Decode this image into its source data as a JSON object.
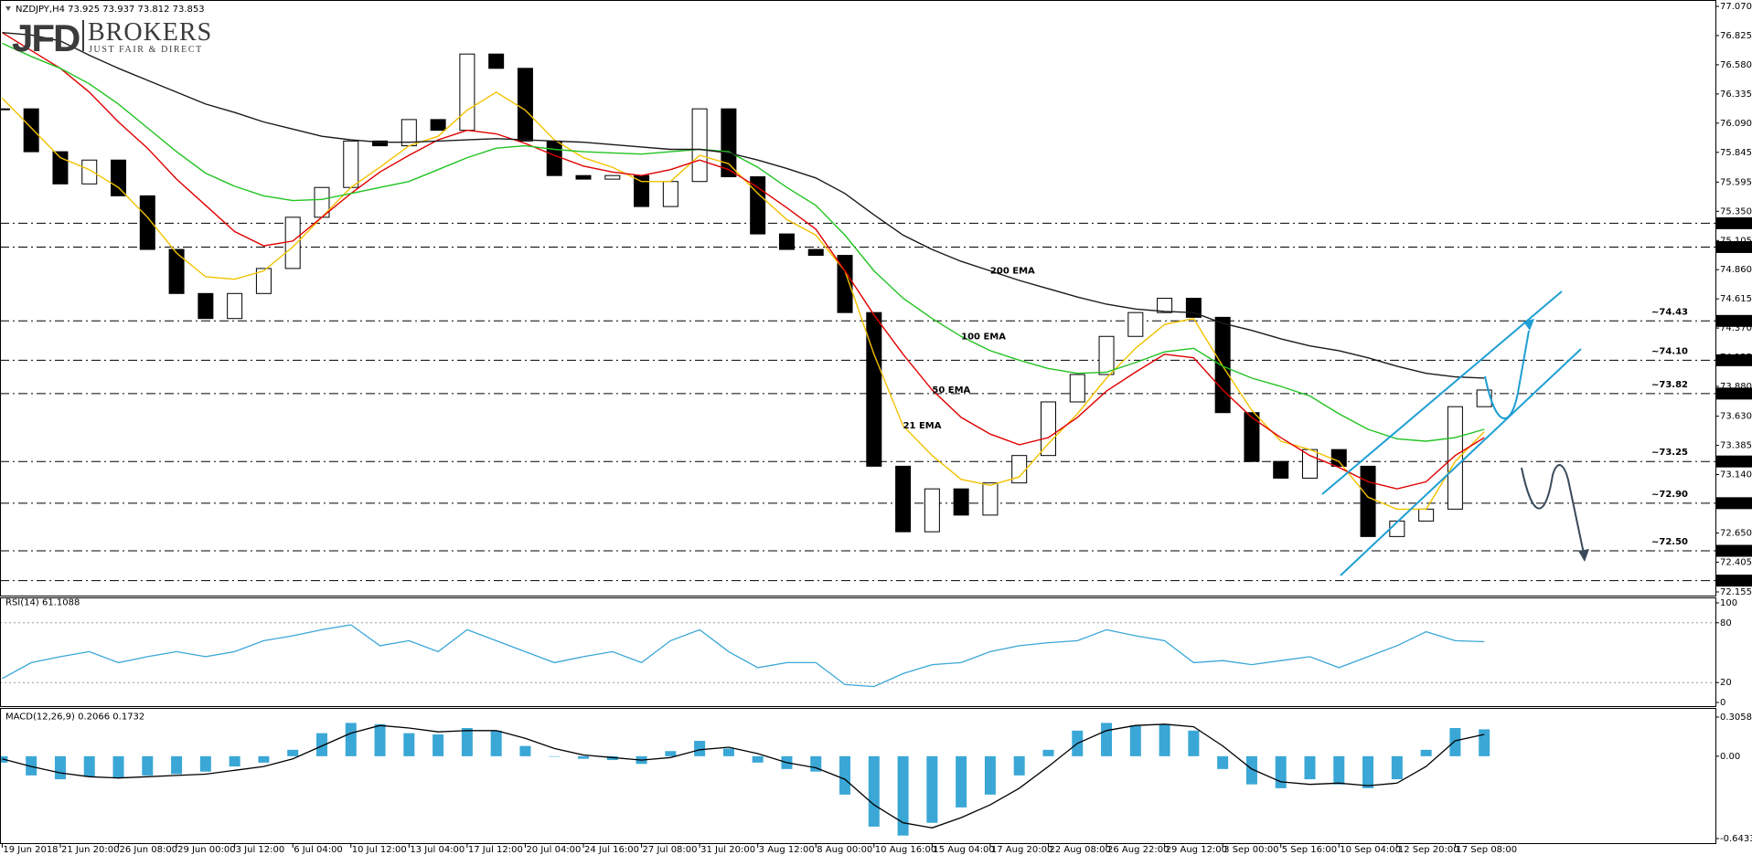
{
  "header": {
    "symbol_info": "NZDJPY,H4  73.925 73.937 73.812 73.853"
  },
  "logo": {
    "mark": "JFD",
    "name": "BROKERS",
    "tagline": "JUST FAIR & DIRECT"
  },
  "chart_data": [
    {
      "type": "candlestick",
      "categories": [
        "19 Jun 2018",
        null,
        "21 Jun 20:00",
        null,
        "26 Jun 08:00",
        null,
        "29 Jun 00:00",
        null,
        "3 Jul 12:00",
        null,
        "6 Jul 04:00",
        null,
        "10 Jul 12:00",
        null,
        "13 Jul 04:00",
        null,
        "17 Jul 12:00",
        null,
        "20 Jul 04:00",
        null,
        "24 Jul 16:00",
        null,
        "27 Jul 08:00",
        null,
        "31 Jul 20:00",
        null,
        "3 Aug 12:00",
        null,
        "8 Aug 00:00",
        null,
        "10 Aug 16:00",
        null,
        "15 Aug 04:00",
        null,
        "17 Aug 20:00",
        null,
        "22 Aug 08:00",
        null,
        "26 Aug 22:00",
        null,
        "29 Aug 12:00",
        null,
        "3 Sep 00:00",
        null,
        "5 Sep 16:00",
        null,
        "10 Sep 04:00",
        null,
        "12 Sep 20:00",
        null,
        "17 Sep 08:00",
        null
      ],
      "values": [
        76.21,
        75.85,
        75.58,
        75.78,
        75.48,
        75.03,
        74.66,
        74.45,
        74.66,
        74.87,
        75.3,
        75.55,
        75.94,
        75.9,
        76.12,
        76.03,
        76.67,
        76.55,
        75.94,
        75.65,
        75.62,
        75.65,
        75.39,
        75.6,
        76.21,
        75.64,
        75.16,
        75.03,
        74.98,
        74.5,
        73.21,
        72.66,
        73.02,
        72.8,
        73.07,
        73.3,
        73.75,
        73.98,
        74.3,
        74.5,
        74.62,
        74.46,
        73.66,
        73.25,
        73.11,
        73.35,
        73.21,
        72.62,
        72.75,
        72.85,
        73.71,
        73.85
      ],
      "color": "#000000",
      "series": [
        {
          "name": "21 EMA",
          "color": "#f2c200",
          "values": [
            76.3,
            76.05,
            75.8,
            75.7,
            75.55,
            75.3,
            75.0,
            74.8,
            74.78,
            74.85,
            75.05,
            75.3,
            75.55,
            75.72,
            75.9,
            75.98,
            76.2,
            76.35,
            76.2,
            75.95,
            75.8,
            75.72,
            75.6,
            75.6,
            75.82,
            75.75,
            75.5,
            75.28,
            75.15,
            74.85,
            74.15,
            73.55,
            73.3,
            73.1,
            73.05,
            73.12,
            73.4,
            73.65,
            73.95,
            74.2,
            74.4,
            74.45,
            74.05,
            73.68,
            73.42,
            73.35,
            73.25,
            72.95,
            72.85,
            72.85,
            73.25,
            73.5
          ]
        },
        {
          "name": "50 EMA",
          "color": "#e00000",
          "values": [
            76.85,
            76.7,
            76.55,
            76.35,
            76.1,
            75.88,
            75.62,
            75.4,
            75.18,
            75.06,
            75.1,
            75.3,
            75.5,
            75.68,
            75.82,
            75.95,
            76.03,
            76.0,
            75.92,
            75.82,
            75.73,
            75.68,
            75.65,
            75.7,
            75.78,
            75.7,
            75.55,
            75.38,
            75.2,
            74.85,
            74.48,
            74.15,
            73.85,
            73.62,
            73.48,
            73.39,
            73.45,
            73.62,
            73.84,
            74.0,
            74.15,
            74.12,
            73.85,
            73.62,
            73.45,
            73.3,
            73.2,
            73.08,
            73.02,
            73.08,
            73.3,
            73.45
          ]
        },
        {
          "name": "100 EMA",
          "color": "#22c322",
          "values": [
            76.76,
            76.65,
            76.55,
            76.42,
            76.25,
            76.05,
            75.85,
            75.67,
            75.56,
            75.48,
            75.44,
            75.45,
            75.5,
            75.55,
            75.6,
            75.7,
            75.8,
            75.88,
            75.9,
            75.87,
            75.85,
            75.84,
            75.83,
            75.85,
            75.87,
            75.85,
            75.72,
            75.55,
            75.4,
            75.15,
            74.85,
            74.62,
            74.45,
            74.3,
            74.18,
            74.1,
            74.03,
            73.99,
            74.0,
            74.08,
            74.17,
            74.2,
            74.05,
            73.95,
            73.88,
            73.8,
            73.65,
            73.52,
            73.44,
            73.42,
            73.45,
            73.52
          ]
        },
        {
          "name": "200 EMA",
          "color": "#1a1a1a",
          "values": [
            76.85,
            76.83,
            76.78,
            76.66,
            76.55,
            76.45,
            76.35,
            76.25,
            76.18,
            76.1,
            76.04,
            75.98,
            75.95,
            75.93,
            75.93,
            75.94,
            75.95,
            75.96,
            75.95,
            75.94,
            75.93,
            75.91,
            75.89,
            75.87,
            75.87,
            75.84,
            75.78,
            75.71,
            75.63,
            75.5,
            75.32,
            75.15,
            75.03,
            74.93,
            74.85,
            74.77,
            74.7,
            74.63,
            74.57,
            74.53,
            74.51,
            74.5,
            74.41,
            74.35,
            74.28,
            74.22,
            74.18,
            74.12,
            74.05,
            73.99,
            73.96,
            73.95
          ]
        }
      ],
      "ylim": [
        72.155,
        77.07
      ],
      "yticks": [
        {
          "value": 77.07,
          "label": "77.070"
        },
        76.825,
        {
          "value": 76.58,
          "label": "76.580"
        },
        76.335,
        {
          "value": 76.09,
          "label": "76.090"
        },
        75.845,
        75.595,
        {
          "value": 75.35,
          "label": "75.350"
        },
        75.105,
        {
          "value": 74.86,
          "label": "74.860"
        },
        74.615,
        {
          "value": 74.37,
          "label": "74.370"
        },
        74.125,
        {
          "value": 73.88,
          "label": "73.880"
        },
        {
          "value": 73.63,
          "label": "73.630"
        },
        73.385,
        {
          "value": 73.14,
          "label": "73.140"
        },
        72.895,
        {
          "value": 72.65,
          "label": "72.650"
        },
        72.405,
        72.155
      ],
      "levels": [
        {
          "value": 75.25,
          "label": "75.250"
        },
        {
          "value": 75.05,
          "label": "75.050"
        },
        {
          "value": 74.43,
          "label": "74.430",
          "note": "~74.43",
          "note_color": "#1e9fd4"
        },
        {
          "value": 74.1,
          "label": "74.100",
          "note": "~74.10",
          "note_color": "#1e9fd4"
        },
        {
          "value": 73.82,
          "label": "73.820",
          "note": "~73.82",
          "note_color": "#1e9fd4"
        },
        {
          "value": 73.25,
          "label": "73.250",
          "note": "~73.25",
          "note_color": "#3a3a3a"
        },
        {
          "value": 72.9,
          "label": "72.900",
          "note": "~72.90",
          "note_color": "#3a3a3a"
        },
        {
          "value": 72.5,
          "label": "72.500",
          "note": "~72.50",
          "note_color": "#3a3a3a"
        },
        {
          "value": 72.25,
          "label": "72.250"
        }
      ]
    },
    {
      "type": "line",
      "title": "RSI(14) 61.1088",
      "series": [
        {
          "color": "#3aa7d6",
          "values": [
            24,
            40,
            46,
            51,
            40,
            46,
            51,
            46,
            51,
            62,
            67,
            73,
            78,
            57,
            62,
            51,
            73,
            62,
            51,
            40,
            46,
            51,
            40,
            62,
            73,
            51,
            35,
            40,
            40,
            18,
            16,
            29,
            38,
            40,
            51,
            57,
            60,
            62,
            73,
            67,
            62,
            40,
            42,
            38,
            42,
            46,
            35,
            46,
            57,
            71,
            62,
            61
          ]
        }
      ],
      "ylim": [
        0,
        100
      ],
      "yticks": [
        100,
        80,
        20,
        0
      ],
      "grid": true
    },
    {
      "type": "bar",
      "title": "MACD(12,26,9) 0.2066 0.1732",
      "series": [
        {
          "type": "bar",
          "color": "#3aa7d6",
          "values": [
            -0.05,
            -0.15,
            -0.18,
            -0.16,
            -0.17,
            -0.15,
            -0.14,
            -0.12,
            -0.08,
            -0.05,
            0.05,
            0.18,
            0.26,
            0.25,
            0.18,
            0.17,
            0.22,
            0.2,
            0.08,
            0.0,
            -0.02,
            -0.03,
            -0.06,
            0.04,
            0.12,
            0.06,
            -0.05,
            -0.1,
            -0.12,
            -0.3,
            -0.55,
            -0.62,
            -0.52,
            -0.4,
            -0.3,
            -0.15,
            0.05,
            0.2,
            0.26,
            0.24,
            0.25,
            0.2,
            -0.1,
            -0.22,
            -0.25,
            -0.18,
            -0.22,
            -0.25,
            -0.18,
            0.05,
            0.22,
            0.21
          ]
        },
        {
          "type": "line",
          "color": "#000000",
          "values": [
            -0.02,
            -0.08,
            -0.13,
            -0.16,
            -0.17,
            -0.16,
            -0.15,
            -0.14,
            -0.11,
            -0.08,
            -0.02,
            0.08,
            0.18,
            0.24,
            0.22,
            0.19,
            0.2,
            0.2,
            0.14,
            0.06,
            0.01,
            -0.01,
            -0.03,
            -0.01,
            0.05,
            0.07,
            0.02,
            -0.05,
            -0.09,
            -0.18,
            -0.38,
            -0.52,
            -0.56,
            -0.48,
            -0.38,
            -0.25,
            -0.08,
            0.1,
            0.2,
            0.24,
            0.25,
            0.23,
            0.08,
            -0.1,
            -0.2,
            -0.22,
            -0.21,
            -0.23,
            -0.21,
            -0.08,
            0.12,
            0.17
          ]
        }
      ],
      "ylim": [
        -0.6433,
        0.3058
      ],
      "yticks": [
        0.3058,
        {
          "value": 0,
          "label": "0.00"
        },
        -0.6433
      ]
    }
  ]
}
